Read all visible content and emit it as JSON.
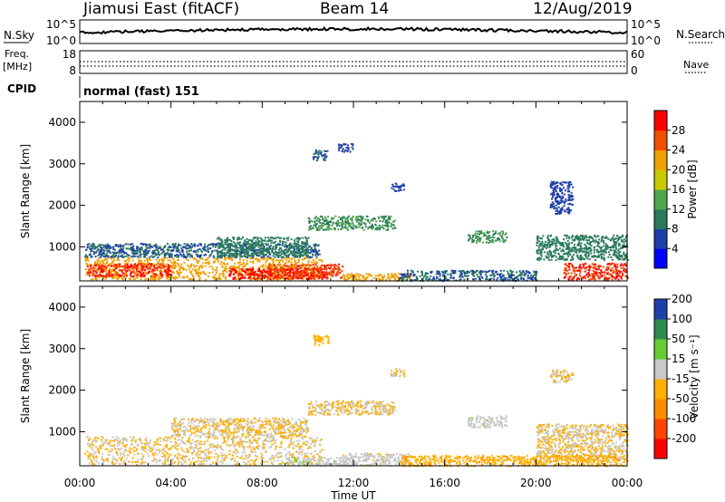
{
  "header": {
    "station": "Jiamusi East (fitACF)",
    "beam": "Beam 14",
    "date": "12/Aug/2019"
  },
  "noise_panel": {
    "left_label": "N.Sky",
    "right_label": "N.Search",
    "ticks": [
      "10^5",
      "10^0"
    ]
  },
  "freq_panel": {
    "left_label": "Freq.",
    "unit_label": "[MHz]",
    "left_ticks": [
      "18",
      "8"
    ],
    "right_label": "Nave",
    "right_ticks": [
      "60",
      "0"
    ]
  },
  "cpid_panel": {
    "label": "CPID",
    "mode": "normal (fast) 151"
  },
  "colors": {
    "power_scale": [
      "#0000ff",
      "#1f3fa8",
      "#2a7a5a",
      "#4fa84f",
      "#c8c800",
      "#f0a000",
      "#f05000",
      "#ff0000"
    ],
    "velocity_scale": [
      "#ff0000",
      "#ff4400",
      "#ff8c00",
      "#ffb000",
      "#c8c8c8",
      "#66cc33",
      "#2d8b4e",
      "#1f3fa8"
    ]
  },
  "chart_data": [
    {
      "type": "heatmap",
      "name": "power",
      "xlabel": "Time UT",
      "ylabel": "Slant Range [km]",
      "xlim": [
        "00:00",
        "24:00"
      ],
      "ylim": [
        180,
        4500
      ],
      "x_ticks": [
        "00:00",
        "04:00",
        "08:00",
        "12:00",
        "16:00",
        "20:00",
        "00:00"
      ],
      "y_ticks": [
        "1000",
        "2000",
        "3000",
        "4000"
      ],
      "y_tick_values": [
        1000,
        2000,
        3000,
        4000
      ],
      "colorbar": {
        "label": "Power [dB]",
        "range": [
          0,
          32
        ],
        "ticks": [
          "4",
          "8",
          "12",
          "16",
          "20",
          "24",
          "28"
        ],
        "tick_values": [
          4,
          8,
          12,
          16,
          20,
          24,
          28
        ]
      },
      "regions": [
        {
          "t0": 0.2,
          "t1": 10.6,
          "r0": 220,
          "r1": 760,
          "value": 22
        },
        {
          "t0": 0.3,
          "t1": 4.0,
          "r0": 300,
          "r1": 620,
          "value": 28
        },
        {
          "t0": 6.5,
          "t1": 10.8,
          "r0": 240,
          "r1": 500,
          "value": 30
        },
        {
          "t0": 8.2,
          "t1": 11.5,
          "r0": 250,
          "r1": 600,
          "value": 27
        },
        {
          "t0": 0.2,
          "t1": 10.5,
          "r0": 760,
          "r1": 1100,
          "value": 8
        },
        {
          "t0": 6.0,
          "t1": 10.0,
          "r0": 800,
          "r1": 1250,
          "value": 10
        },
        {
          "t0": 11.5,
          "t1": 14.5,
          "r0": 200,
          "r1": 380,
          "value": 22
        },
        {
          "t0": 10.0,
          "t1": 13.8,
          "r0": 1420,
          "r1": 1760,
          "value": 12
        },
        {
          "t0": 10.2,
          "t1": 10.9,
          "r0": 3100,
          "r1": 3350,
          "value": 8
        },
        {
          "t0": 11.3,
          "t1": 12.0,
          "r0": 3300,
          "r1": 3500,
          "value": 6
        },
        {
          "t0": 13.6,
          "t1": 14.2,
          "r0": 2350,
          "r1": 2550,
          "value": 6
        },
        {
          "t0": 17.0,
          "t1": 18.7,
          "r0": 1120,
          "r1": 1400,
          "value": 12
        },
        {
          "t0": 20.0,
          "t1": 24.0,
          "r0": 700,
          "r1": 1300,
          "value": 10
        },
        {
          "t0": 21.2,
          "t1": 24.0,
          "r0": 230,
          "r1": 620,
          "value": 28
        },
        {
          "t0": 14.0,
          "t1": 20.0,
          "r0": 200,
          "r1": 450,
          "value": 8
        },
        {
          "t0": 20.6,
          "t1": 21.6,
          "r0": 1800,
          "r1": 2600,
          "value": 6
        }
      ]
    },
    {
      "type": "heatmap",
      "name": "velocity",
      "xlabel": "Time UT",
      "ylabel": "Slant Range [km]",
      "xlim": [
        "00:00",
        "24:00"
      ],
      "ylim": [
        180,
        4500
      ],
      "x_ticks": [
        "00:00",
        "04:00",
        "08:00",
        "12:00",
        "16:00",
        "20:00",
        "00:00"
      ],
      "y_ticks": [
        "1000",
        "2000",
        "3000",
        "4000"
      ],
      "y_tick_values": [
        1000,
        2000,
        3000,
        4000
      ],
      "colorbar": {
        "label": "Velocity [m s⁻¹]",
        "range": [
          -250,
          250
        ],
        "ticks": [
          "-200",
          "-100",
          "-50",
          "-15",
          "15",
          "50",
          "100",
          "200"
        ],
        "tick_values": [
          -200,
          -100,
          -50,
          -15,
          15,
          50,
          100,
          200
        ]
      },
      "regions": [
        {
          "t0": 0.2,
          "t1": 10.6,
          "r0": 220,
          "r1": 900,
          "value": 0
        },
        {
          "t0": 4.0,
          "t1": 10.0,
          "r0": 900,
          "r1": 1350,
          "value": 0
        },
        {
          "t0": 9.0,
          "t1": 12.0,
          "r0": 200,
          "r1": 400,
          "value": 40
        },
        {
          "t0": 11.5,
          "t1": 14.5,
          "r0": 200,
          "r1": 500,
          "value": 25
        },
        {
          "t0": 10.0,
          "t1": 13.8,
          "r0": 1420,
          "r1": 1760,
          "value": 0
        },
        {
          "t0": 17.0,
          "t1": 18.7,
          "r0": 1120,
          "r1": 1400,
          "value": 35
        },
        {
          "t0": 20.0,
          "t1": 24.0,
          "r0": 300,
          "r1": 1200,
          "value": 0
        },
        {
          "t0": 14.0,
          "t1": 24.0,
          "r0": 190,
          "r1": 450,
          "value": -40
        },
        {
          "t0": 10.2,
          "t1": 10.9,
          "r0": 3100,
          "r1": 3350,
          "value": -30
        },
        {
          "t0": 13.6,
          "t1": 14.2,
          "r0": 2350,
          "r1": 2550,
          "value": 0
        },
        {
          "t0": 20.6,
          "t1": 21.6,
          "r0": 2200,
          "r1": 2500,
          "value": 0
        }
      ]
    }
  ]
}
